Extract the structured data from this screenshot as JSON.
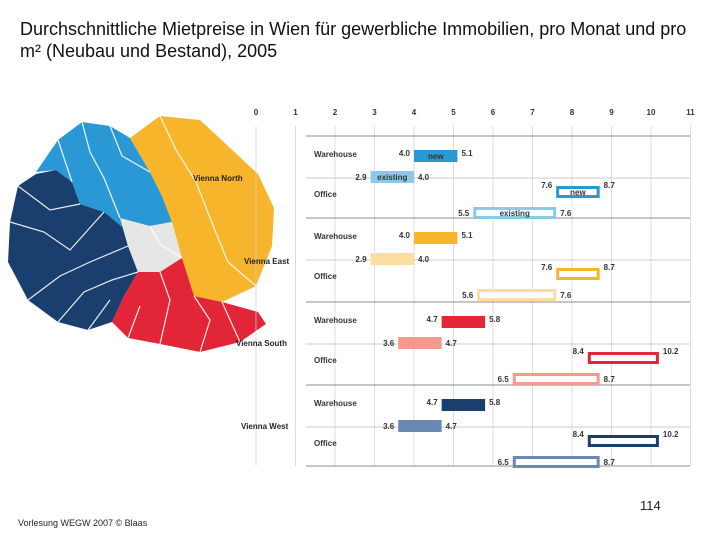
{
  "title": "Durchschnittliche Mietpreise in Wien für gewerbliche Immobilien, pro Monat und pro m² (Neubau und Bestand), 2005",
  "footer": "Vorlesung WEGW 2007 © Blaas",
  "slide_number": "114",
  "regions": [
    {
      "label": "Vienna North",
      "colors": {
        "new": "#2a98d4",
        "existing": "#8cc8ea"
      }
    },
    {
      "label": "Vienna East",
      "colors": {
        "new": "#f7b52c",
        "existing": "#fbdda0"
      }
    },
    {
      "label": "Vienna South",
      "colors": {
        "new": "#e32637",
        "existing": "#f29a8e"
      }
    },
    {
      "label": "Vienna West",
      "colors": {
        "new": "#1a3e6e",
        "existing": "#6b87b3"
      }
    }
  ],
  "map_colors": {
    "north": "#2a98d4",
    "east": "#f7b52c",
    "south": "#e32637",
    "west": "#1a3e6e",
    "center": "#e6e6e6"
  },
  "chart_data": {
    "type": "bar",
    "subtype": "floating range bars",
    "x_ticks": [
      "0",
      "1",
      "2",
      "3",
      "4",
      "5",
      "6",
      "7",
      "8",
      "9",
      "10",
      "11"
    ],
    "xlim": [
      0,
      11
    ],
    "grid": true,
    "bars": [
      {
        "region": "Vienna North",
        "type": "Warehouse",
        "condition": "new",
        "low": 4.0,
        "high": 5.1,
        "label": "new",
        "low_label": "4.0",
        "high_label": "5.1"
      },
      {
        "region": "Vienna North",
        "type": "Warehouse",
        "condition": "existing",
        "low": 2.9,
        "high": 4.0,
        "label": "existing",
        "low_label": "2.9",
        "high_label": "4.0"
      },
      {
        "region": "Vienna North",
        "type": "Office",
        "condition": "new",
        "low": 7.6,
        "high": 8.7,
        "label": "new",
        "low_label": "7.6",
        "high_label": "8.7"
      },
      {
        "region": "Vienna North",
        "type": "Office",
        "condition": "existing",
        "low": 5.5,
        "high": 7.6,
        "label": "existing",
        "low_label": "5.5",
        "high_label": "7.6"
      },
      {
        "region": "Vienna East",
        "type": "Warehouse",
        "condition": "new",
        "low": 4.0,
        "high": 5.1,
        "label": "",
        "low_label": "4.0",
        "high_label": "5.1"
      },
      {
        "region": "Vienna East",
        "type": "Warehouse",
        "condition": "existing",
        "low": 2.9,
        "high": 4.0,
        "label": "",
        "low_label": "2.9",
        "high_label": "4.0"
      },
      {
        "region": "Vienna East",
        "type": "Office",
        "condition": "new",
        "low": 7.6,
        "high": 8.7,
        "label": "",
        "low_label": "7.6",
        "high_label": "8.7"
      },
      {
        "region": "Vienna East",
        "type": "Office",
        "condition": "existing",
        "low": 5.6,
        "high": 7.6,
        "label": "",
        "low_label": "5.6",
        "high_label": "7.6"
      },
      {
        "region": "Vienna South",
        "type": "Warehouse",
        "condition": "new",
        "low": 4.7,
        "high": 5.8,
        "label": "",
        "low_label": "4.7",
        "high_label": "5.8"
      },
      {
        "region": "Vienna South",
        "type": "Warehouse",
        "condition": "existing",
        "low": 3.6,
        "high": 4.7,
        "label": "",
        "low_label": "3.6",
        "high_label": "4.7"
      },
      {
        "region": "Vienna South",
        "type": "Office",
        "condition": "new",
        "low": 8.4,
        "high": 10.2,
        "label": "",
        "low_label": "8.4",
        "high_label": "10.2"
      },
      {
        "region": "Vienna South",
        "type": "Office",
        "condition": "existing",
        "low": 6.5,
        "high": 8.7,
        "label": "",
        "low_label": "6.5",
        "high_label": "8.7"
      },
      {
        "region": "Vienna West",
        "type": "Warehouse",
        "condition": "new",
        "low": 4.7,
        "high": 5.8,
        "label": "",
        "low_label": "4.7",
        "high_label": "5.8"
      },
      {
        "region": "Vienna West",
        "type": "Warehouse",
        "condition": "existing",
        "low": 3.6,
        "high": 4.7,
        "label": "",
        "low_label": "3.6",
        "high_label": "4.7"
      },
      {
        "region": "Vienna West",
        "type": "Office",
        "condition": "new",
        "low": 8.4,
        "high": 10.2,
        "label": "",
        "low_label": "8.4",
        "high_label": "10.2"
      },
      {
        "region": "Vienna West",
        "type": "Office",
        "condition": "existing",
        "low": 6.5,
        "high": 8.7,
        "label": "",
        "low_label": "6.5",
        "high_label": "8.7"
      }
    ]
  }
}
